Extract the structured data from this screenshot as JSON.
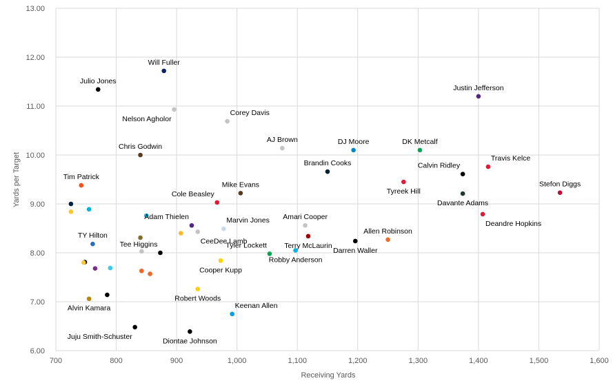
{
  "chart_data": {
    "type": "scatter",
    "title": "",
    "xlabel": "Receiving Yards",
    "ylabel": "Yards per Target",
    "xlim": [
      700,
      1600
    ],
    "ylim": [
      6.0,
      13.0
    ],
    "x_ticks": [
      700,
      800,
      900,
      1000,
      1100,
      1200,
      1300,
      1400,
      1500,
      1600
    ],
    "x_tick_labels": [
      "700",
      "800",
      "900",
      "1,000",
      "1,100",
      "1,200",
      "1,300",
      "1,400",
      "1,500",
      "1,600"
    ],
    "y_ticks": [
      6,
      7,
      8,
      9,
      10,
      11,
      12,
      13
    ],
    "y_tick_labels": [
      "6.00",
      "7.00",
      "8.00",
      "9.00",
      "10.00",
      "11.00",
      "12.00",
      "13.00"
    ],
    "grid": true,
    "legend": false,
    "points": [
      {
        "label": "Will Fuller",
        "x": 879,
        "y": 11.72,
        "color": "#0b2265",
        "label_pos": "above"
      },
      {
        "label": "Julio Jones",
        "x": 770,
        "y": 11.34,
        "color": "#000000",
        "label_pos": "above"
      },
      {
        "label": "Nelson Agholor",
        "x": 896,
        "y": 10.93,
        "color": "#c4c4c4",
        "label_pos": "below-left"
      },
      {
        "label": "Corey Davis",
        "x": 984,
        "y": 10.69,
        "color": "#c4c4c4",
        "label_pos": "above-right"
      },
      {
        "label": "Justin Jefferson",
        "x": 1400,
        "y": 11.2,
        "color": "#4f2683",
        "label_pos": "above"
      },
      {
        "label": "AJ Brown",
        "x": 1075,
        "y": 10.14,
        "color": "#c4c4c4",
        "label_pos": "above"
      },
      {
        "label": "DJ Moore",
        "x": 1193,
        "y": 10.1,
        "color": "#0085ca",
        "label_pos": "above"
      },
      {
        "label": "DK Metcalf",
        "x": 1303,
        "y": 10.1,
        "color": "#00a651",
        "label_pos": "above"
      },
      {
        "label": "Chris Godwin",
        "x": 840,
        "y": 10.0,
        "color": "#5a3a1b",
        "label_pos": "above"
      },
      {
        "label": "Travis Kelce",
        "x": 1416,
        "y": 9.76,
        "color": "#e31837",
        "label_pos": "above-right"
      },
      {
        "label": "Brandin Cooks",
        "x": 1150,
        "y": 9.66,
        "color": "#03202f",
        "label_pos": "above"
      },
      {
        "label": "Calvin Ridley",
        "x": 1374,
        "y": 9.61,
        "color": "#000000",
        "label_pos": "above-left"
      },
      {
        "label": "Tyreek Hill",
        "x": 1276,
        "y": 9.45,
        "color": "#e31837",
        "label_pos": "below"
      },
      {
        "label": "Tim Patrick",
        "x": 742,
        "y": 9.38,
        "color": "#fb4f14",
        "label_pos": "above"
      },
      {
        "label": "Mike Evans",
        "x": 1006,
        "y": 9.22,
        "color": "#5a3a1b",
        "label_pos": "above"
      },
      {
        "label": "Stefon Diggs",
        "x": 1535,
        "y": 9.23,
        "color": "#c60c30",
        "label_pos": "above"
      },
      {
        "label": "Davante Adams",
        "x": 1374,
        "y": 9.21,
        "color": "#203731",
        "label_pos": "below"
      },
      {
        "label": "Cole Beasley",
        "x": 967,
        "y": 9.03,
        "color": "#e31837",
        "label_pos": "above-left"
      },
      {
        "label": "",
        "x": 725,
        "y": 9.0,
        "color": "#002244",
        "label_pos": "none"
      },
      {
        "label": "",
        "x": 755,
        "y": 8.89,
        "color": "#00b2e3",
        "label_pos": "none"
      },
      {
        "label": "",
        "x": 725,
        "y": 8.84,
        "color": "#ffc62f",
        "label_pos": "none"
      },
      {
        "label": "Deandre Hopkins",
        "x": 1407,
        "y": 8.79,
        "color": "#e31837",
        "label_pos": "below-right"
      },
      {
        "label": "",
        "x": 850,
        "y": 8.76,
        "color": "#00b2e3",
        "label_pos": "none"
      },
      {
        "label": "Adam Thielen",
        "x": 925,
        "y": 8.56,
        "color": "#4f2683",
        "label_pos": "above-left"
      },
      {
        "label": "Amari Cooper",
        "x": 1113,
        "y": 8.56,
        "color": "#c4c4c4",
        "label_pos": "above"
      },
      {
        "label": "Marvin Jones",
        "x": 978,
        "y": 8.49,
        "color": "#c9d7f0",
        "label_pos": "above-right"
      },
      {
        "label": "CeeDee Lamb",
        "x": 935,
        "y": 8.43,
        "color": "#c4c4c4",
        "label_pos": "below-right"
      },
      {
        "label": "",
        "x": 907,
        "y": 8.4,
        "color": "#fdb927",
        "label_pos": "none"
      },
      {
        "label": "Terry McLaurin",
        "x": 1118,
        "y": 8.34,
        "color": "#a00000",
        "label_pos": "below"
      },
      {
        "label": "",
        "x": 840,
        "y": 8.31,
        "color": "#806e2f",
        "label_pos": "none"
      },
      {
        "label": "Allen Robinson",
        "x": 1250,
        "y": 8.27,
        "color": "#e96b2c",
        "label_pos": "above"
      },
      {
        "label": "Darren Waller",
        "x": 1196,
        "y": 8.24,
        "color": "#000000",
        "label_pos": "below"
      },
      {
        "label": "TY Hilton",
        "x": 761,
        "y": 8.18,
        "color": "#2a6ebb",
        "label_pos": "above"
      },
      {
        "label": "Robby Anderson",
        "x": 1097,
        "y": 8.05,
        "color": "#00b2e3",
        "label_pos": "below"
      },
      {
        "label": "Tee Higgins",
        "x": 873,
        "y": 8.0,
        "color": "#000000",
        "label_pos": "above-left"
      },
      {
        "label": "",
        "x": 842,
        "y": 8.03,
        "color": "#c4c4c4",
        "label_pos": "none"
      },
      {
        "label": "Tyler Lockett",
        "x": 1054,
        "y": 7.98,
        "color": "#00a651",
        "label_pos": "above-left"
      },
      {
        "label": "Cooper Kupp",
        "x": 973,
        "y": 7.84,
        "color": "#ffd100",
        "label_pos": "below"
      },
      {
        "label": "",
        "x": 748,
        "y": 7.81,
        "color": "#000000",
        "label_pos": "none"
      },
      {
        "label": "",
        "x": 746,
        "y": 7.8,
        "color": "#ffc62f",
        "label_pos": "none"
      },
      {
        "label": "",
        "x": 790,
        "y": 7.69,
        "color": "#33ccee",
        "label_pos": "none"
      },
      {
        "label": "",
        "x": 765,
        "y": 7.68,
        "color": "#7b2d8e",
        "label_pos": "none"
      },
      {
        "label": "",
        "x": 842,
        "y": 7.63,
        "color": "#f26522",
        "label_pos": "none"
      },
      {
        "label": "",
        "x": 856,
        "y": 7.57,
        "color": "#f26522",
        "label_pos": "none"
      },
      {
        "label": "Robert Woods",
        "x": 935,
        "y": 7.26,
        "color": "#ffd100",
        "label_pos": "below"
      },
      {
        "label": "",
        "x": 785,
        "y": 7.14,
        "color": "#000000",
        "label_pos": "none"
      },
      {
        "label": "Alvin Kamara",
        "x": 755,
        "y": 7.06,
        "color": "#b8860b",
        "label_pos": "below"
      },
      {
        "label": "Keenan Allen",
        "x": 992,
        "y": 6.75,
        "color": "#00a0e3",
        "label_pos": "above-right"
      },
      {
        "label": "Juju Smith-Schuster",
        "x": 831,
        "y": 6.48,
        "color": "#000000",
        "label_pos": "below-left"
      },
      {
        "label": "Diontae Johnson",
        "x": 922,
        "y": 6.39,
        "color": "#000000",
        "label_pos": "below"
      }
    ]
  }
}
